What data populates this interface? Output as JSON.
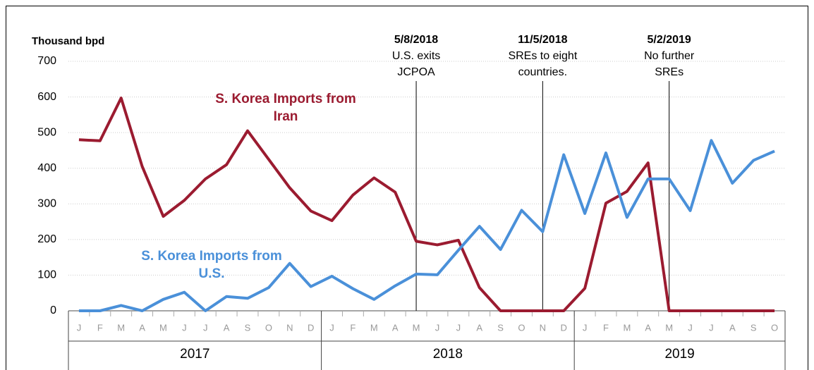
{
  "chart_data": {
    "type": "line",
    "y_label": "Thousand bpd",
    "categories": [
      "J",
      "F",
      "M",
      "A",
      "M",
      "J",
      "J",
      "A",
      "S",
      "O",
      "N",
      "D",
      "J",
      "F",
      "M",
      "A",
      "M",
      "J",
      "J",
      "A",
      "S",
      "O",
      "N",
      "D",
      "J",
      "F",
      "M",
      "A",
      "M",
      "J",
      "J",
      "A",
      "S",
      "O"
    ],
    "year_groups": [
      "2017",
      "2018",
      "2019"
    ],
    "series": [
      {
        "name": "S. Korea Imports from Iran",
        "color": "#9b1b30",
        "values": [
          480,
          477,
          597,
          405,
          265,
          310,
          370,
          410,
          505,
          425,
          345,
          280,
          253,
          325,
          373,
          333,
          195,
          185,
          198,
          65,
          0,
          0,
          0,
          0,
          63,
          302,
          335,
          415,
          0,
          0,
          0,
          0,
          0,
          0
        ]
      },
      {
        "name": "S. Korea Imports from U.S.",
        "color": "#4a90d9",
        "values": [
          0,
          0,
          15,
          0,
          32,
          52,
          0,
          40,
          35,
          65,
          133,
          68,
          97,
          62,
          32,
          70,
          103,
          101,
          170,
          237,
          172,
          282,
          222,
          438,
          273,
          443,
          262,
          370,
          370,
          281,
          478,
          358,
          422,
          448
        ]
      }
    ],
    "ylim": [
      0,
      700
    ],
    "yticks": [
      0,
      100,
      200,
      300,
      400,
      500,
      600,
      700
    ],
    "grid": true,
    "annotations": [
      {
        "date": "5/8/2018",
        "text": [
          "U.S. exits",
          "JCPOA"
        ]
      },
      {
        "date": "11/5/2018",
        "text": [
          "SREs to eight",
          "countries."
        ]
      },
      {
        "date": "5/2/2019",
        "text": [
          "No further",
          "SREs"
        ]
      }
    ]
  }
}
